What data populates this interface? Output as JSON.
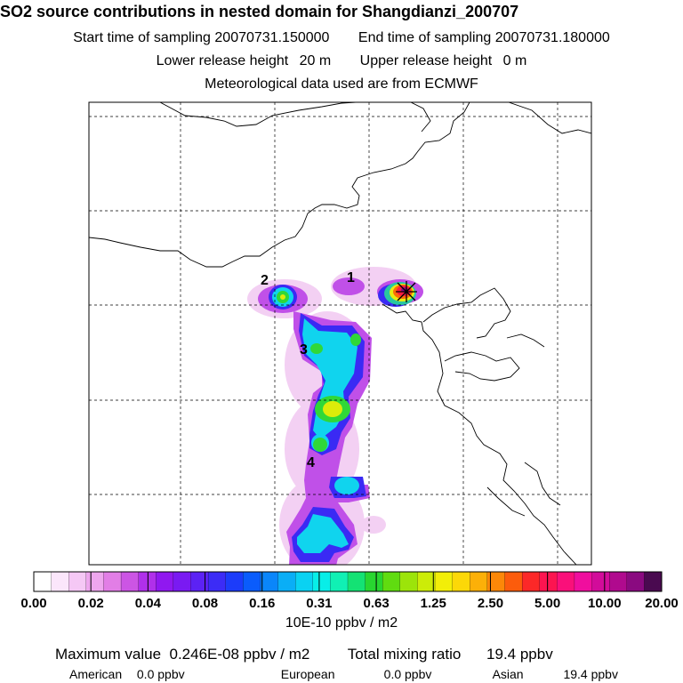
{
  "header": {
    "title": "SO2 source contributions in nested domain for Shangdianzi_200707",
    "start_label": "Start time of sampling",
    "start_value": "20070731.150000",
    "end_label": "End time of sampling",
    "end_value": "20070731.180000",
    "lower_label": "Lower release height",
    "lower_value": "20 m",
    "upper_label": "Upper release height",
    "upper_value": "0 m",
    "met_line": "Meteorological data used are from ECMWF"
  },
  "chart_data": {
    "type": "heatmap",
    "title": "SO2 source contributions in nested domain for Shangdianzi_200707",
    "colorbar": {
      "tick_labels": [
        "0.00",
        "0.02",
        "0.04",
        "0.08",
        "0.16",
        "0.31",
        "0.63",
        "1.25",
        "2.50",
        "5.00",
        "10.00",
        "20.00"
      ],
      "unit": "10E-10 ppbv / m2",
      "colors": [
        "#ffffff",
        "#fbe6fb",
        "#f5c8f5",
        "#eea6ee",
        "#e27ee6",
        "#cc55e4",
        "#b030ea",
        "#9018f0",
        "#7a1af2",
        "#5c22f4",
        "#3c2cf6",
        "#1c3cfa",
        "#0a5cfc",
        "#0a86fa",
        "#0aaef6",
        "#0ad2f2",
        "#08eee8",
        "#10f0b4",
        "#14e274",
        "#28d630",
        "#60dc10",
        "#9ce40a",
        "#ccec08",
        "#f2ee08",
        "#fcd808",
        "#fcb008",
        "#fc8808",
        "#fc5c0c",
        "#fc2828",
        "#fc1450",
        "#fa107a",
        "#f00e9e",
        "#d20c9a",
        "#b00a8e",
        "#8a0a80",
        "#4a0a50"
      ]
    },
    "receptor_symbol": "x-marker",
    "source_labels": [
      "1",
      "2",
      "3",
      "4"
    ],
    "legend": "bottom"
  },
  "footer": {
    "max_label": "Maximum value",
    "max_value": "0.246E-08 ppbv / m2",
    "total_label": "Total mixing ratio",
    "total_value": "19.4 ppbv",
    "regions": [
      {
        "name": "American",
        "value": "0.0 ppbv"
      },
      {
        "name": "European",
        "value": "0.0 ppbv"
      },
      {
        "name": "Asian",
        "value": "19.4 ppbv"
      }
    ]
  }
}
